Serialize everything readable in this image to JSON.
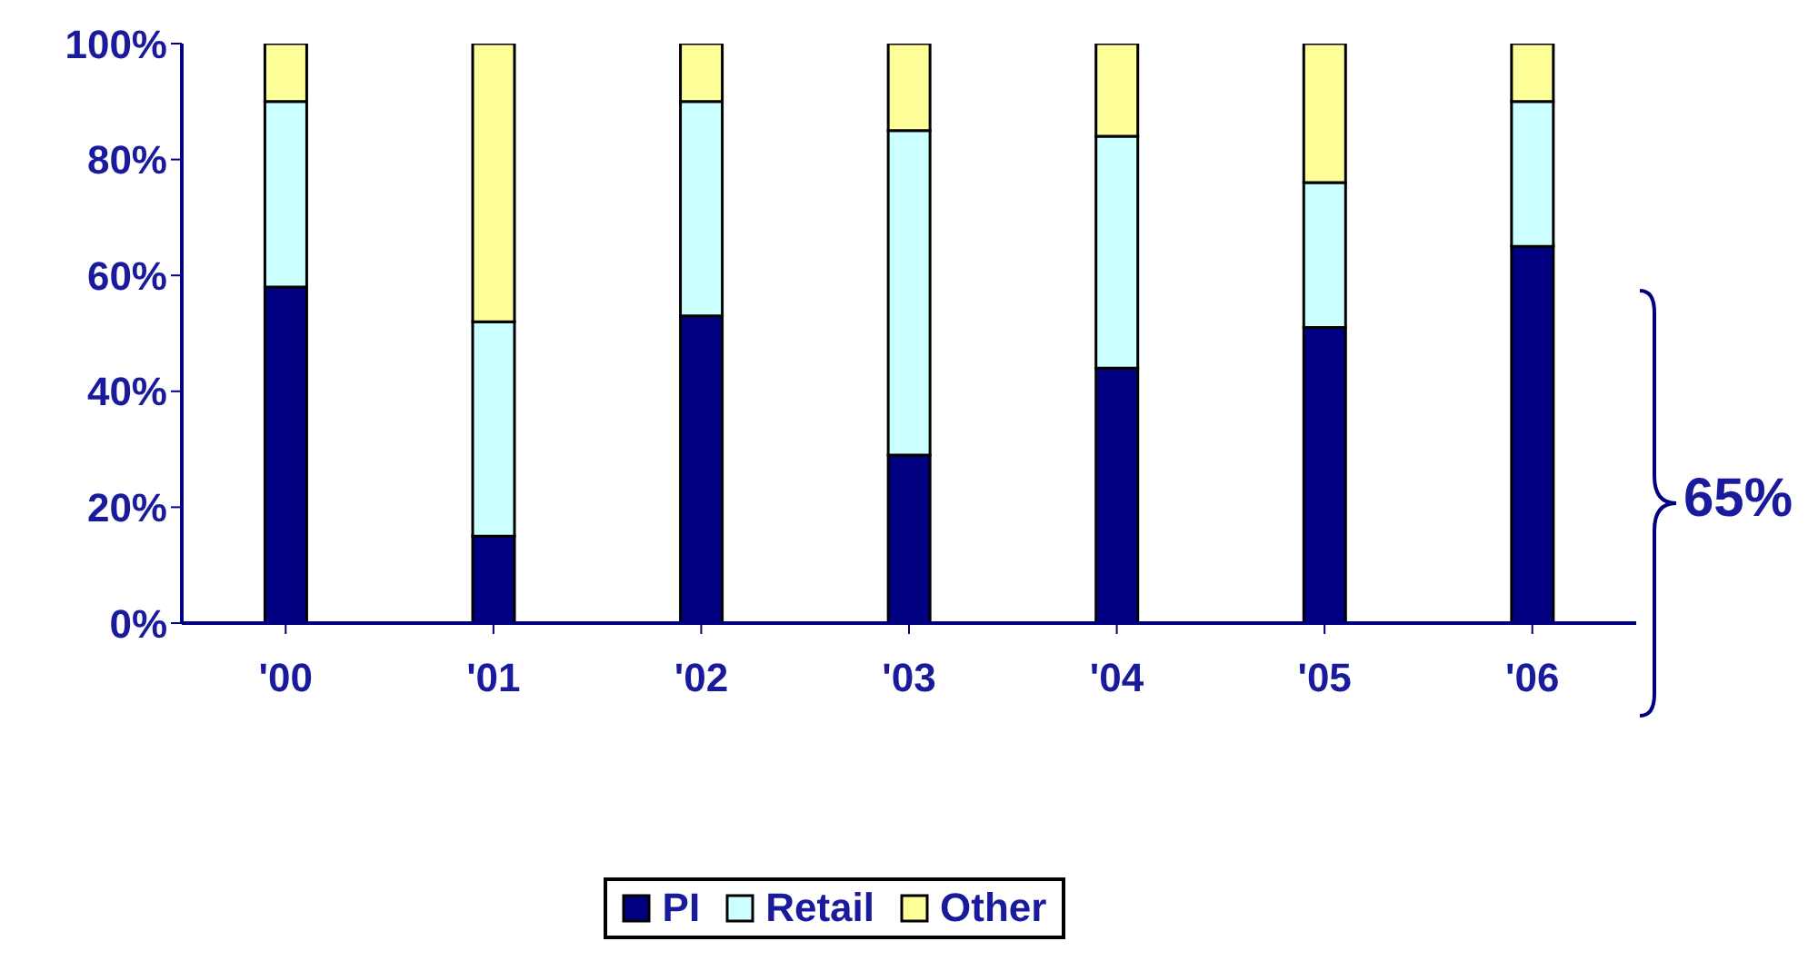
{
  "chart_data": {
    "type": "bar",
    "stacked": true,
    "categories": [
      "'00",
      "'01",
      "'02",
      "'03",
      "'04",
      "'05",
      "'06"
    ],
    "series": [
      {
        "name": "PI",
        "color": "#000080",
        "values": [
          58,
          15,
          53,
          29,
          44,
          51,
          65
        ]
      },
      {
        "name": "Retail",
        "color": "#ccffff",
        "values": [
          32,
          37,
          37,
          56,
          40,
          25,
          25
        ]
      },
      {
        "name": "Other",
        "color": "#ffff99",
        "values": [
          10,
          48,
          10,
          15,
          16,
          24,
          10
        ]
      }
    ],
    "ylim": [
      0,
      100
    ],
    "yticks": [
      {
        "value": 0,
        "label": "0%"
      },
      {
        "value": 20,
        "label": "20%"
      },
      {
        "value": 40,
        "label": "40%"
      },
      {
        "value": 60,
        "label": "60%"
      },
      {
        "value": 80,
        "label": "80%"
      },
      {
        "value": 100,
        "label": "100%"
      }
    ],
    "legend": "bottom",
    "grid": false,
    "annotations": [
      "65%"
    ]
  }
}
